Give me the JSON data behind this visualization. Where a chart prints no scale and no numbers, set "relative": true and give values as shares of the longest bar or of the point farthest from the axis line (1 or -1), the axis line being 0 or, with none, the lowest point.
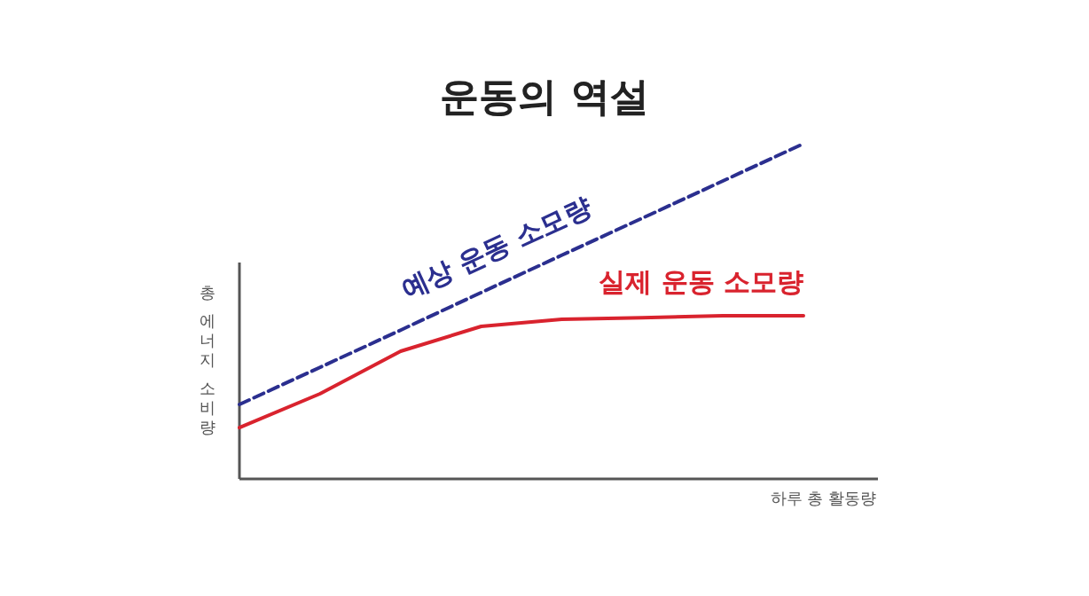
{
  "chart_data": {
    "type": "line",
    "title": "운동의 역설",
    "xlabel": "하루 총 활동량",
    "ylabel": "총 에너지 소비량",
    "relative": true,
    "categories": [
      null,
      null,
      null,
      null,
      null,
      null,
      null,
      null
    ],
    "series": [
      {
        "name": "예상 운동 소모량",
        "color": "#2b2f8f",
        "line_style": "dashed",
        "values": [
          0.222,
          0.333,
          0.444,
          0.556,
          0.667,
          0.778,
          0.889,
          1.0
        ]
      },
      {
        "name": "실제 운동 소모량",
        "color": "#d9232e",
        "line_style": "solid",
        "values": [
          0.153,
          0.254,
          0.381,
          0.455,
          0.476,
          0.481,
          0.487,
          0.487
        ]
      }
    ]
  }
}
